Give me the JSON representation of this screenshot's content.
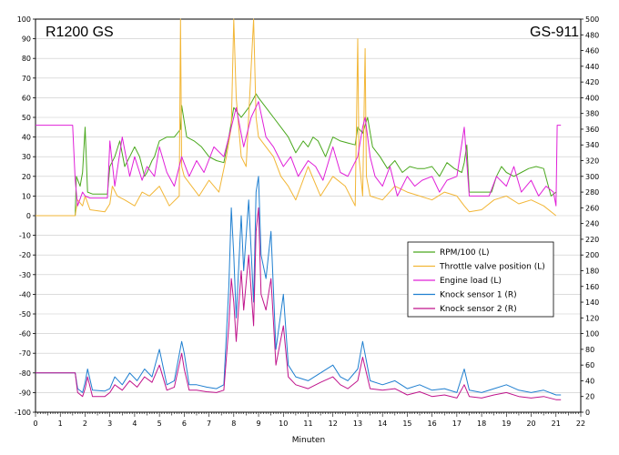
{
  "chart_data": {
    "type": "line",
    "title_left": "R1200 GS",
    "title_right": "GS-911",
    "xlabel": "Minuten",
    "xlim": [
      0,
      22
    ],
    "ylim_left": [
      -100,
      100
    ],
    "ylim_right": [
      0,
      500
    ],
    "x_ticks": [
      "0",
      "1",
      "2",
      "3",
      "4",
      "5",
      "6",
      "7",
      "8",
      "9",
      "10",
      "11",
      "12",
      "13",
      "14",
      "15",
      "16",
      "17",
      "18",
      "19",
      "20",
      "21",
      "22"
    ],
    "y_left_ticks": [
      "100",
      "90",
      "80",
      "70",
      "60",
      "50",
      "40",
      "30",
      "20",
      "10",
      "0",
      "-10",
      "-20",
      "-30",
      "-40",
      "-50",
      "-60",
      "-70",
      "-80",
      "-90",
      "-100"
    ],
    "y_right_ticks": [
      "500",
      "480",
      "460",
      "440",
      "420",
      "400",
      "380",
      "360",
      "340",
      "320",
      "300",
      "280",
      "260",
      "240",
      "220",
      "200",
      "180",
      "160",
      "140",
      "120",
      "100",
      "80",
      "60",
      "40",
      "20",
      "0"
    ],
    "grid": true,
    "legend_position": "lower-right",
    "colors": {
      "rpm": "#4aa81e",
      "throttle": "#f2b636",
      "load": "#e020d8",
      "knock1": "#1f7fd0",
      "knock2": "#c0148c"
    },
    "series": [
      {
        "name": "RPM/100 (L)",
        "axis": "left",
        "x": [
          0,
          1.6,
          1.65,
          1.8,
          1.9,
          2.0,
          2.1,
          2.3,
          2.5,
          2.9,
          3.0,
          3.2,
          3.4,
          3.6,
          3.8,
          4.0,
          4.2,
          4.4,
          4.5,
          4.7,
          4.8,
          5.0,
          5.3,
          5.6,
          5.85,
          5.9,
          6.1,
          6.4,
          6.7,
          7.0,
          7.3,
          7.6,
          7.8,
          8.0,
          8.3,
          8.6,
          8.9,
          9.0,
          9.3,
          9.6,
          9.9,
          10.2,
          10.5,
          10.8,
          11.0,
          11.2,
          11.4,
          11.7,
          12.0,
          12.3,
          12.6,
          12.9,
          13.0,
          13.2,
          13.4,
          13.6,
          13.9,
          14.2,
          14.5,
          14.8,
          15.1,
          15.4,
          15.7,
          16.0,
          16.3,
          16.6,
          16.9,
          17.2,
          17.3,
          17.4,
          17.5,
          17.7,
          18.0,
          18.4,
          18.6,
          18.8,
          19.0,
          19.3,
          19.6,
          19.9,
          20.2,
          20.5,
          20.8,
          21.0
        ],
        "values": [
          0,
          0,
          20,
          15,
          22,
          45,
          12,
          11,
          11,
          11,
          25,
          30,
          38,
          25,
          30,
          35,
          30,
          20,
          22,
          28,
          30,
          38,
          40,
          40,
          44,
          56,
          40,
          38,
          35,
          30,
          28,
          27,
          40,
          55,
          50,
          55,
          62,
          60,
          55,
          50,
          45,
          40,
          32,
          38,
          35,
          40,
          38,
          30,
          40,
          38,
          37,
          36,
          45,
          42,
          50,
          35,
          30,
          24,
          28,
          22,
          25,
          24,
          24,
          25,
          20,
          27,
          24,
          22,
          27,
          36,
          12,
          12,
          12,
          12,
          20,
          25,
          22,
          20,
          22,
          24,
          25,
          24,
          10,
          12
        ]
      },
      {
        "name": "Throttle valve position (L)",
        "axis": "left",
        "x": [
          0,
          1.6,
          1.7,
          1.9,
          2.0,
          2.2,
          2.8,
          3.0,
          3.1,
          3.3,
          3.6,
          4.0,
          4.3,
          4.6,
          5.0,
          5.4,
          5.8,
          5.85,
          5.9,
          6.0,
          6.3,
          6.6,
          7.0,
          7.4,
          7.7,
          7.9,
          8.0,
          8.1,
          8.3,
          8.5,
          8.8,
          8.9,
          9.0,
          9.3,
          9.6,
          9.9,
          10.2,
          10.5,
          11.0,
          11.5,
          12.0,
          12.5,
          12.9,
          13.0,
          13.05,
          13.2,
          13.3,
          13.35,
          13.5,
          14.0,
          14.5,
          15.0,
          15.5,
          16.0,
          16.5,
          17.0,
          17.3,
          17.5,
          18.0,
          18.5,
          19.0,
          19.5,
          20.0,
          20.5,
          21.0
        ],
        "values": [
          0,
          0,
          8,
          5,
          10,
          3,
          2,
          6,
          15,
          10,
          8,
          5,
          12,
          10,
          15,
          5,
          10,
          100,
          25,
          20,
          15,
          10,
          18,
          12,
          30,
          45,
          100,
          60,
          30,
          25,
          100,
          50,
          40,
          35,
          30,
          20,
          15,
          8,
          25,
          10,
          20,
          15,
          5,
          90,
          30,
          10,
          85,
          20,
          10,
          8,
          15,
          12,
          10,
          8,
          12,
          10,
          5,
          2,
          3,
          8,
          10,
          6,
          8,
          5,
          0
        ]
      },
      {
        "name": "Engine load (L)",
        "axis": "left",
        "x": [
          0,
          1.5,
          1.6,
          1.7,
          1.9,
          2.0,
          2.2,
          2.5,
          2.9,
          3.0,
          3.2,
          3.5,
          3.8,
          4.0,
          4.3,
          4.5,
          4.8,
          5.0,
          5.3,
          5.6,
          5.9,
          6.2,
          6.5,
          6.8,
          7.2,
          7.6,
          7.9,
          8.1,
          8.4,
          8.7,
          9.0,
          9.3,
          9.6,
          10.0,
          10.3,
          10.6,
          11.0,
          11.3,
          11.6,
          12.0,
          12.3,
          12.6,
          13.0,
          13.2,
          13.3,
          13.5,
          13.7,
          14.0,
          14.3,
          14.6,
          15.0,
          15.3,
          15.6,
          16.0,
          16.3,
          16.6,
          17.0,
          17.3,
          17.5,
          17.8,
          18.0,
          18.3,
          18.6,
          19.0,
          19.3,
          19.6,
          20.0,
          20.3,
          20.6,
          20.9,
          21.0,
          21.05,
          21.2
        ],
        "values": [
          46,
          46,
          18,
          5,
          12,
          10,
          9,
          9,
          9,
          38,
          15,
          40,
          20,
          30,
          18,
          25,
          20,
          35,
          22,
          15,
          30,
          20,
          28,
          22,
          35,
          30,
          45,
          55,
          35,
          50,
          58,
          40,
          35,
          25,
          30,
          20,
          28,
          25,
          18,
          35,
          22,
          20,
          30,
          45,
          50,
          30,
          20,
          15,
          25,
          10,
          20,
          15,
          18,
          20,
          12,
          18,
          20,
          45,
          10,
          10,
          10,
          10,
          20,
          15,
          25,
          12,
          18,
          10,
          15,
          12,
          5,
          46,
          46
        ]
      },
      {
        "name": "Knock sensor 1 (R)",
        "axis": "right",
        "x": [
          0,
          1.6,
          1.7,
          1.9,
          2.0,
          2.1,
          2.3,
          2.8,
          3.0,
          3.2,
          3.5,
          3.8,
          4.1,
          4.4,
          4.7,
          5.0,
          5.3,
          5.6,
          5.9,
          6.0,
          6.2,
          6.5,
          6.9,
          7.3,
          7.6,
          7.8,
          7.9,
          8.0,
          8.1,
          8.3,
          8.4,
          8.6,
          8.8,
          8.9,
          9.0,
          9.1,
          9.3,
          9.5,
          9.7,
          10.0,
          10.2,
          10.5,
          11.0,
          11.5,
          12.0,
          12.3,
          12.6,
          13.0,
          13.2,
          13.5,
          14.0,
          14.5,
          15.0,
          15.5,
          16.0,
          16.5,
          17.0,
          17.3,
          17.5,
          18.0,
          18.5,
          19.0,
          19.5,
          20.0,
          20.5,
          21.0,
          21.2
        ],
        "values": [
          50,
          50,
          30,
          25,
          38,
          55,
          28,
          27,
          30,
          45,
          35,
          50,
          40,
          55,
          45,
          80,
          35,
          40,
          90,
          75,
          35,
          35,
          32,
          30,
          35,
          160,
          260,
          200,
          120,
          250,
          180,
          270,
          140,
          280,
          300,
          200,
          170,
          230,
          80,
          150,
          60,
          45,
          40,
          50,
          60,
          45,
          40,
          55,
          90,
          40,
          35,
          40,
          30,
          35,
          28,
          30,
          25,
          55,
          28,
          25,
          30,
          35,
          28,
          25,
          28,
          22,
          22
        ]
      },
      {
        "name": "Knock sensor 2 (R)",
        "axis": "right",
        "x": [
          0,
          1.6,
          1.7,
          1.9,
          2.0,
          2.1,
          2.3,
          2.8,
          3.0,
          3.2,
          3.5,
          3.8,
          4.1,
          4.4,
          4.7,
          5.0,
          5.3,
          5.6,
          5.9,
          6.0,
          6.2,
          6.5,
          6.9,
          7.3,
          7.6,
          7.8,
          7.9,
          8.0,
          8.1,
          8.3,
          8.4,
          8.6,
          8.8,
          8.9,
          9.0,
          9.1,
          9.3,
          9.5,
          9.7,
          10.0,
          10.2,
          10.5,
          11.0,
          11.5,
          12.0,
          12.3,
          12.6,
          13.0,
          13.2,
          13.5,
          14.0,
          14.5,
          15.0,
          15.5,
          16.0,
          16.5,
          17.0,
          17.3,
          17.5,
          18.0,
          18.5,
          19.0,
          19.5,
          20.0,
          20.5,
          21.0,
          21.2
        ],
        "values": [
          50,
          50,
          25,
          20,
          30,
          45,
          20,
          20,
          25,
          35,
          28,
          40,
          32,
          45,
          38,
          60,
          28,
          32,
          75,
          55,
          28,
          28,
          26,
          25,
          28,
          110,
          170,
          140,
          90,
          180,
          130,
          200,
          110,
          230,
          260,
          150,
          130,
          170,
          60,
          110,
          45,
          35,
          30,
          38,
          45,
          35,
          30,
          40,
          70,
          30,
          28,
          30,
          22,
          26,
          20,
          22,
          18,
          35,
          20,
          18,
          22,
          25,
          20,
          18,
          20,
          16,
          16
        ]
      }
    ]
  }
}
